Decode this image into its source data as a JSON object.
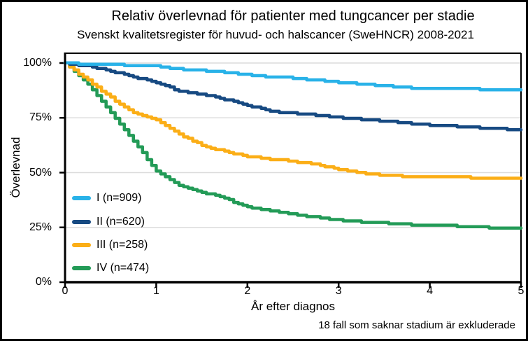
{
  "chart_data": {
    "type": "line",
    "title": "Relativ överlevnad för patienter med tungcancer per stadie",
    "subtitle": "Svenskt kvalitetsregister för huvud- och halscancer (SweHNCR) 2008-2021",
    "xlabel": "År efter diagnos",
    "ylabel": "Överlevnad",
    "footnote": "18 fall som saknar stadium är exkluderade",
    "xlim": [
      0,
      5
    ],
    "ylim": [
      0,
      100
    ],
    "grid": "horizontal",
    "gridline_color": "#dcdcdc",
    "axis_color": "#000000",
    "legend_position": "inside-bottom-left",
    "x_ticks": [
      {
        "label": "0",
        "value": 0
      },
      {
        "label": "1",
        "value": 1
      },
      {
        "label": "2",
        "value": 2
      },
      {
        "label": "3",
        "value": 3
      },
      {
        "label": "4",
        "value": 4
      },
      {
        "label": "5",
        "value": 5
      }
    ],
    "y_ticks": [
      {
        "label": "0%",
        "value": 0
      },
      {
        "label": "25%",
        "value": 25
      },
      {
        "label": "50%",
        "value": 50
      },
      {
        "label": "75%",
        "value": 75
      },
      {
        "label": "100%",
        "value": 100
      }
    ],
    "x": [
      0,
      0.25,
      0.5,
      0.75,
      1,
      1.25,
      1.5,
      1.75,
      2,
      2.25,
      2.5,
      2.75,
      3,
      3.25,
      3.5,
      3.75,
      4,
      4.25,
      4.5,
      4.75,
      5
    ],
    "series": [
      {
        "name": "I (n=909)",
        "color": "#29b2e8",
        "values": [
          100,
          99.6,
          99.3,
          99.0,
          98.6,
          97.3,
          96.6,
          95.8,
          94.8,
          93.6,
          93.2,
          92.2,
          91.3,
          90.4,
          89.6,
          88.8,
          88.3,
          88.2,
          88.1,
          87.8,
          87.5
        ]
      },
      {
        "name": "II (n=620)",
        "color": "#174a82",
        "values": [
          100,
          98.5,
          96.3,
          93.8,
          91.0,
          87.3,
          85.8,
          83.5,
          80.8,
          77.9,
          77.2,
          76.2,
          75.2,
          74.4,
          73.5,
          72.6,
          71.8,
          71.2,
          70.6,
          70.1,
          69.5
        ]
      },
      {
        "name": "III (n=258)",
        "color": "#fbae17",
        "values": [
          100,
          92.0,
          84.2,
          77.5,
          74.0,
          67.3,
          62.5,
          59.6,
          57.4,
          56.2,
          55.2,
          53.8,
          51.4,
          49.8,
          48.8,
          48.3,
          48.0,
          47.9,
          47.7,
          47.6,
          47.4
        ]
      },
      {
        "name": "IV (n=474)",
        "color": "#239b57",
        "values": [
          100,
          90.3,
          77.6,
          64.5,
          50.6,
          44.2,
          41.2,
          38.2,
          34.5,
          32.6,
          31.0,
          29.6,
          28.4,
          27.5,
          27.0,
          26.4,
          26.0,
          25.7,
          25.2,
          24.9,
          24.7
        ]
      }
    ]
  }
}
